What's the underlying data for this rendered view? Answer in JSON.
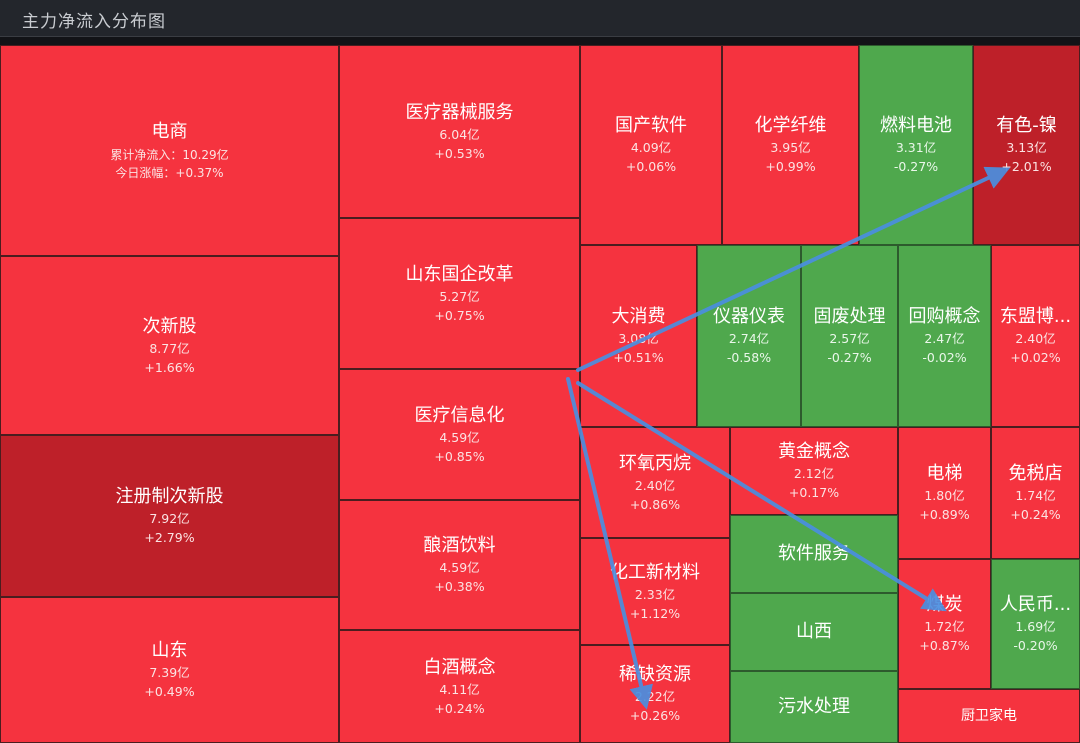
{
  "header": {
    "title": "主力净流入分布图"
  },
  "colors": {
    "up": "#f5333f",
    "strong_up": "#be2029",
    "down": "#4fa84d",
    "arrow": "#4a8fe0"
  },
  "chart_data": {
    "type": "treemap",
    "title": "主力净流入分布图",
    "value_label": "累计净流入：",
    "change_label": "今日涨幅：",
    "items": [
      {
        "name": "电商",
        "inflow": "10.29亿",
        "change": "+0.37%"
      },
      {
        "name": "次新股",
        "inflow": "8.77亿",
        "change": "+1.66%"
      },
      {
        "name": "注册制次新股",
        "inflow": "7.92亿",
        "change": "+2.79%"
      },
      {
        "name": "山东",
        "inflow": "7.39亿",
        "change": "+0.49%"
      },
      {
        "name": "医疗器械服务",
        "inflow": "6.04亿",
        "change": "+0.53%"
      },
      {
        "name": "山东国企改革",
        "inflow": "5.27亿",
        "change": "+0.75%"
      },
      {
        "name": "医疗信息化",
        "inflow": "4.59亿",
        "change": "+0.85%"
      },
      {
        "name": "酿酒饮料",
        "inflow": "4.59亿",
        "change": "+0.38%"
      },
      {
        "name": "白酒概念",
        "inflow": "4.11亿",
        "change": "+0.24%"
      },
      {
        "name": "国产软件",
        "inflow": "4.09亿",
        "change": "+0.06%"
      },
      {
        "name": "化学纤维",
        "inflow": "3.95亿",
        "change": "+0.99%"
      },
      {
        "name": "燃料电池",
        "inflow": "3.31亿",
        "change": "-0.27%"
      },
      {
        "name": "有色-镍",
        "inflow": "3.13亿",
        "change": "+2.01%"
      },
      {
        "name": "大消费",
        "inflow": "3.08亿",
        "change": "+0.51%"
      },
      {
        "name": "仪器仪表",
        "inflow": "2.74亿",
        "change": "-0.58%"
      },
      {
        "name": "固废处理",
        "inflow": "2.57亿",
        "change": "-0.27%"
      },
      {
        "name": "回购概念",
        "inflow": "2.47亿",
        "change": "-0.02%"
      },
      {
        "name": "东盟博...",
        "inflow": "2.40亿",
        "change": "+0.02%"
      },
      {
        "name": "环氧丙烷",
        "inflow": "2.40亿",
        "change": "+0.86%"
      },
      {
        "name": "化工新材料",
        "inflow": "2.33亿",
        "change": "+1.12%"
      },
      {
        "name": "稀缺资源",
        "inflow": "2.22亿",
        "change": "+0.26%"
      },
      {
        "name": "黄金概念",
        "inflow": "2.12亿",
        "change": "+0.17%"
      },
      {
        "name": "软件服务",
        "inflow": "",
        "change": ""
      },
      {
        "name": "山西",
        "inflow": "",
        "change": ""
      },
      {
        "name": "污水处理",
        "inflow": "",
        "change": ""
      },
      {
        "name": "电梯",
        "inflow": "1.80亿",
        "change": "+0.89%"
      },
      {
        "name": "免税店",
        "inflow": "1.74亿",
        "change": "+0.24%"
      },
      {
        "name": "煤炭",
        "inflow": "1.72亿",
        "change": "+0.87%"
      },
      {
        "name": "人民币...",
        "inflow": "1.69亿",
        "change": "-0.20%"
      },
      {
        "name": "厨卫家电",
        "inflow": "",
        "change": ""
      }
    ]
  }
}
